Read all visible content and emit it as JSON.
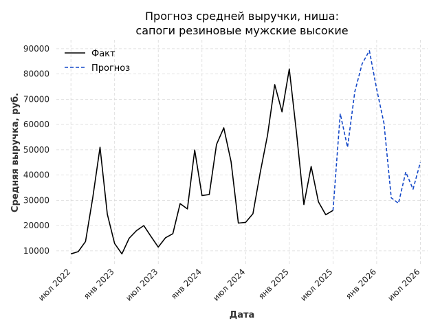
{
  "chart_data": {
    "type": "line",
    "title_lines": [
      "Прогноз средней выручки, ниша:",
      "сапоги резиновые мужские высокие"
    ],
    "xlabel": "Дата",
    "ylabel": "Средняя выручка, руб.",
    "x_tick_labels": [
      "июл 2022",
      "янв 2023",
      "июл 2023",
      "янв 2024",
      "июл 2024",
      "янв 2025",
      "июл 2025",
      "янв 2026",
      "июл 2026"
    ],
    "y_ticks": [
      10000,
      20000,
      30000,
      40000,
      50000,
      60000,
      70000,
      80000,
      90000
    ],
    "y_tick_labels": [
      "10000",
      "20000",
      "30000",
      "40000",
      "50000",
      "60000",
      "70000",
      "80000",
      "90000"
    ],
    "ylim": [
      4800,
      93500
    ],
    "xlim": [
      "2022-05",
      "2026-08"
    ],
    "grid": true,
    "legend_position": "top-left",
    "series": [
      {
        "name": "Факт",
        "color": "#000000",
        "style": "solid",
        "x": [
          "2022-07",
          "2022-08",
          "2022-09",
          "2022-10",
          "2022-11",
          "2022-12",
          "2023-01",
          "2023-02",
          "2023-03",
          "2023-04",
          "2023-05",
          "2023-06",
          "2023-07",
          "2023-08",
          "2023-09",
          "2023-10",
          "2023-11",
          "2023-12",
          "2024-01",
          "2024-02",
          "2024-03",
          "2024-04",
          "2024-05",
          "2024-06",
          "2024-07",
          "2024-08",
          "2024-09",
          "2024-10",
          "2024-11",
          "2024-12",
          "2025-01",
          "2025-02",
          "2025-03",
          "2025-04",
          "2025-05",
          "2025-06",
          "2025-07"
        ],
        "values": [
          8800,
          9700,
          13700,
          31000,
          51000,
          24500,
          12900,
          8800,
          15000,
          18000,
          20000,
          15700,
          11500,
          15200,
          16800,
          28700,
          26600,
          49900,
          31900,
          32300,
          52100,
          58700,
          45300,
          21000,
          21300,
          24700,
          41000,
          55700,
          75800,
          65000,
          82000,
          56400,
          28300,
          43400,
          29400,
          24300,
          26000
        ]
      },
      {
        "name": "Прогноз",
        "color": "#1448c8",
        "style": "dashed",
        "x": [
          "2025-07",
          "2025-08",
          "2025-09",
          "2025-10",
          "2025-11",
          "2025-12",
          "2026-01",
          "2026-02",
          "2026-03",
          "2026-04",
          "2026-05",
          "2026-06",
          "2026-07"
        ],
        "values": [
          26000,
          64300,
          51000,
          73000,
          84000,
          89200,
          74000,
          60500,
          31000,
          28800,
          41200,
          34400,
          45000
        ]
      }
    ]
  }
}
